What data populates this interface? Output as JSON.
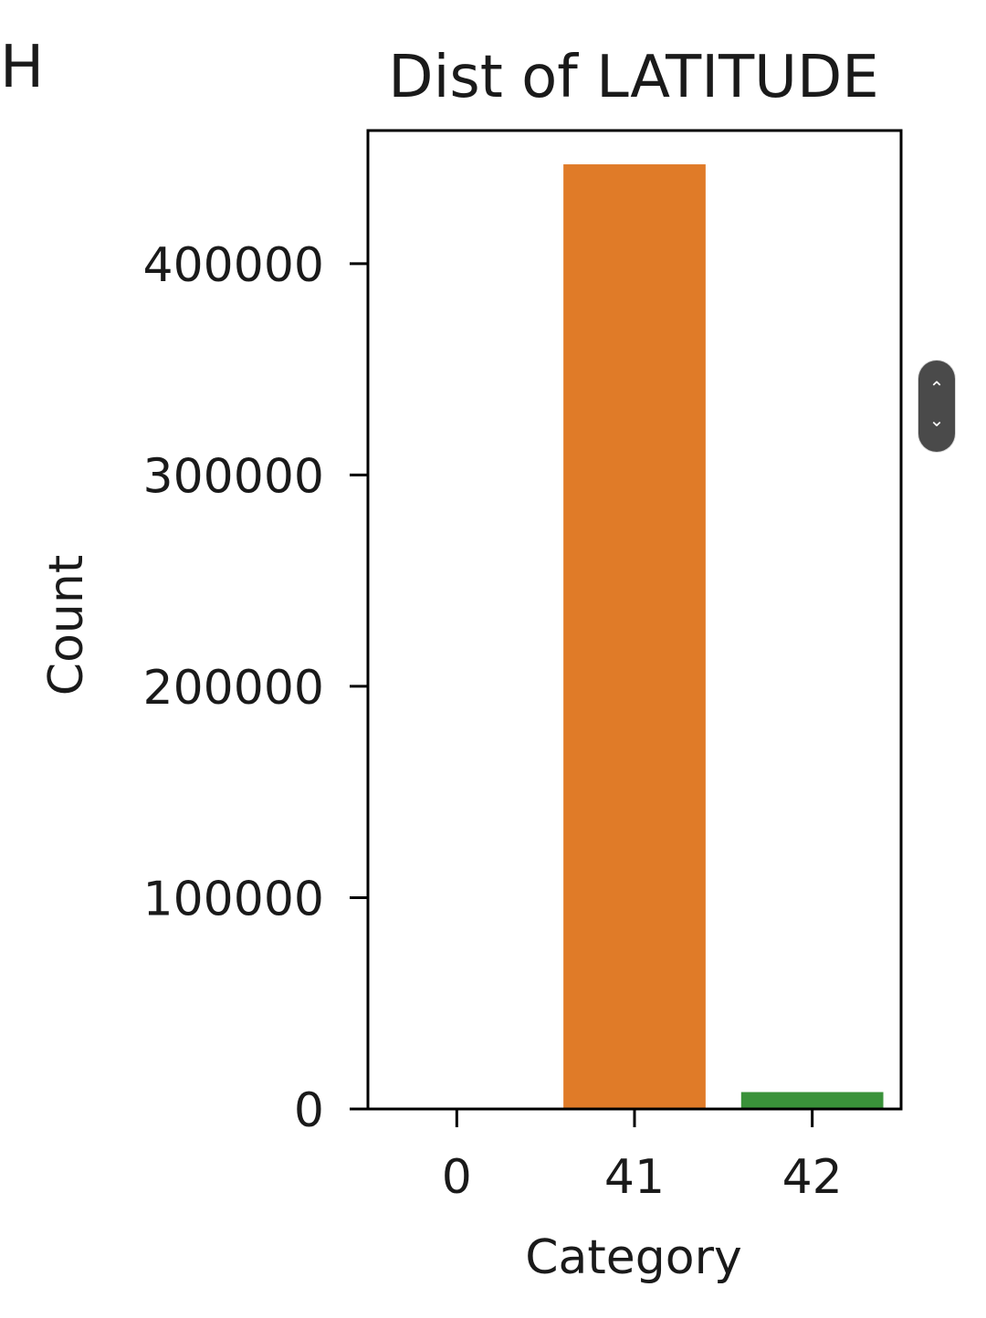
{
  "edge_fragment": "H",
  "scroll_widget": {
    "up_icon": "chevron-up-icon",
    "down_icon": "chevron-down-icon"
  },
  "chart_data": {
    "type": "bar",
    "title": "Dist of LATITUDE",
    "xlabel": "Category",
    "ylabel": "Count",
    "categories": [
      "0",
      "41",
      "42"
    ],
    "values": [
      0,
      447000,
      8000
    ],
    "colors": [
      "#1f77b4",
      "#e07b28",
      "#3a923a"
    ],
    "ylim": [
      0,
      463000
    ],
    "yticks": [
      0,
      100000,
      200000,
      300000,
      400000
    ],
    "grid": false,
    "legend": "none"
  }
}
